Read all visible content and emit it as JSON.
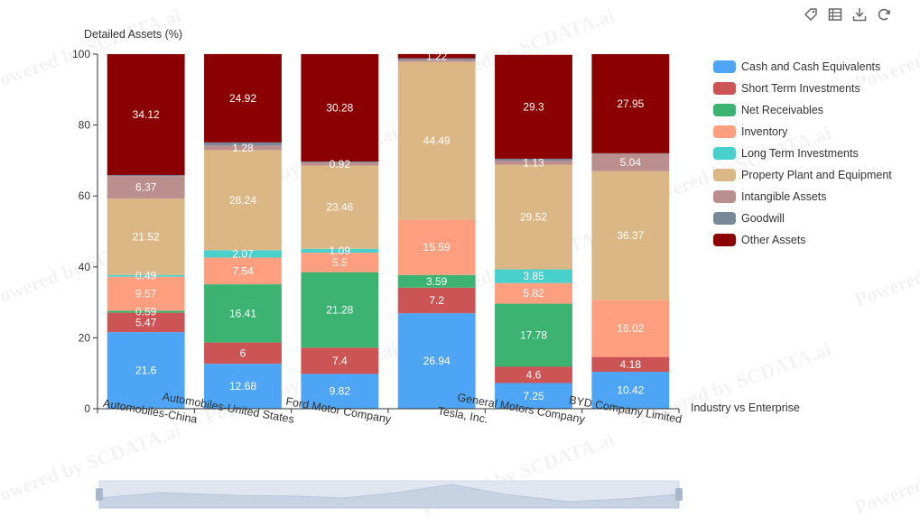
{
  "toolbar": {
    "icons": [
      "tag-icon",
      "data-view-icon",
      "download-icon",
      "refresh-icon"
    ]
  },
  "watermark_text": "Powered by SCDATA.ai",
  "chart_data": {
    "type": "bar",
    "stacked": true,
    "ylabel": "Detailed Assets (%)",
    "xlabel": "Industry vs Enterprise",
    "ylim": [
      0,
      100
    ],
    "yticks": [
      0,
      20,
      40,
      60,
      80,
      100
    ],
    "grid": false,
    "legend_position": "right",
    "categories": [
      "Automobiles-China",
      "Automobiles-United States",
      "Ford Motor Company",
      "Tesla, Inc.",
      "General Motors Company",
      "BYD Company Limited"
    ],
    "series": [
      {
        "name": "Cash and Cash Equivalents",
        "color": "#4ea5f5",
        "values": [
          21.6,
          12.68,
          9.82,
          26.94,
          7.25,
          10.42
        ],
        "labels": [
          "21.6",
          "12.68",
          "9.82",
          "26.94",
          "7.25",
          "10.42"
        ]
      },
      {
        "name": "Short Term Investments",
        "color": "#cd5454",
        "values": [
          5.47,
          6,
          7.4,
          7.2,
          4.6,
          4.18
        ],
        "labels": [
          "5.47",
          "6",
          "7.4",
          "7.2",
          "4.6",
          "4.18"
        ]
      },
      {
        "name": "Net Receivables",
        "color": "#3cb371",
        "values": [
          0.59,
          16.41,
          21.28,
          3.59,
          17.78,
          0
        ],
        "labels": [
          "0.59",
          "16.41",
          "21.28",
          "3.59",
          "17.78",
          ""
        ]
      },
      {
        "name": "Inventory",
        "color": "#ff9f7f",
        "values": [
          9.57,
          7.54,
          5.5,
          15.59,
          5.82,
          16.02
        ],
        "labels": [
          "9.57",
          "7.54",
          "5.5",
          "15.59",
          "5.82",
          "16.02"
        ]
      },
      {
        "name": "Long Term Investments",
        "color": "#48d1cc",
        "values": [
          0.49,
          2.07,
          1.09,
          0,
          3.85,
          0
        ],
        "labels": [
          "0.49",
          "2.07",
          "1.09",
          "",
          "3.85",
          ""
        ]
      },
      {
        "name": "Property Plant and Equipment",
        "color": "#dcb786",
        "values": [
          21.52,
          28.24,
          23.46,
          44.49,
          29.52,
          36.37
        ],
        "labels": [
          "21.52",
          "28.24",
          "23.46",
          "44.49",
          "29.52",
          "36.37"
        ]
      },
      {
        "name": "Intangible Assets",
        "color": "#bc8f8f",
        "values": [
          6.37,
          1.28,
          0.92,
          0.5,
          1.13,
          5.04
        ],
        "labels": [
          "6.37",
          "1.28",
          "0.92",
          "",
          "1.13",
          "5.04"
        ]
      },
      {
        "name": "Goodwill",
        "color": "#778899",
        "values": [
          0.27,
          0.88,
          0.25,
          0.5,
          0.55,
          0.02
        ],
        "labels": [
          "",
          "",
          "",
          "",
          "",
          ""
        ]
      },
      {
        "name": "Other Assets",
        "color": "#8b0000",
        "values": [
          34.12,
          24.92,
          30.28,
          1.22,
          29.3,
          27.95
        ],
        "labels": [
          "34.12",
          "24.92",
          "30.28",
          "1.22",
          "29.3",
          "27.95"
        ]
      }
    ]
  }
}
